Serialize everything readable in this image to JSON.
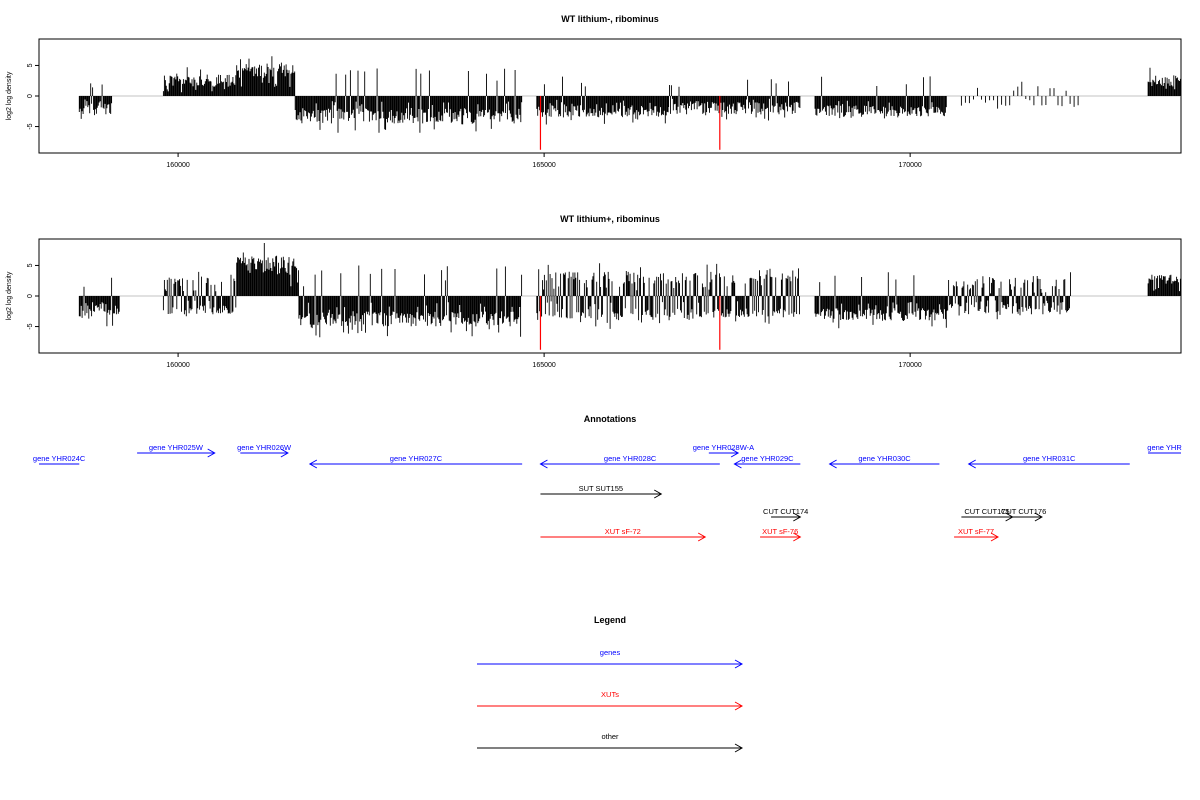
{
  "colors": {
    "gene": "#0000ff",
    "xut": "#ff0000",
    "other": "#000000",
    "marker": "#ff0000",
    "bars": "#000000"
  },
  "chart_data": [
    {
      "type": "bar",
      "title": "WT lithium-, ribominus",
      "ylabel": "log2 log density",
      "xlim": [
        158100,
        173700
      ],
      "ylim": [
        -9,
        9
      ],
      "x_ticks": [
        "160000",
        "165000",
        "170000"
      ],
      "y_ticks": [
        "-5",
        "0",
        "5"
      ],
      "red_markers_x": [
        164950,
        167400
      ],
      "segments": [
        {
          "x": [
            158650,
            159100
          ],
          "mode": "neg",
          "range": [
            0.5,
            3.0
          ]
        },
        {
          "x": [
            159800,
            160800
          ],
          "mode": "pos",
          "range": [
            1.5,
            3.5
          ]
        },
        {
          "x": [
            160800,
            161600
          ],
          "mode": "pos",
          "range": [
            3.0,
            5.5
          ]
        },
        {
          "x": [
            161600,
            164700
          ],
          "mode": "neg",
          "range": [
            2.0,
            4.5
          ]
        },
        {
          "x": [
            164900,
            166700
          ],
          "mode": "neg",
          "range": [
            1.5,
            3.5
          ]
        },
        {
          "x": [
            166700,
            168500
          ],
          "mode": "neg",
          "range": [
            1.0,
            3.0
          ]
        },
        {
          "x": [
            168700,
            170500
          ],
          "mode": "neg",
          "range": [
            1.5,
            3.5
          ]
        },
        {
          "x": [
            170700,
            172300
          ],
          "mode": "sparse",
          "range": [
            0.5,
            1.8
          ]
        },
        {
          "x": [
            173250,
            173700
          ],
          "mode": "pos",
          "range": [
            1.5,
            3.5
          ]
        }
      ]
    },
    {
      "type": "bar",
      "title": "WT lithium+, ribominus",
      "ylabel": "log2 log density",
      "xlim": [
        158100,
        173700
      ],
      "ylim": [
        -9,
        9
      ],
      "x_ticks": [
        "160000",
        "165000",
        "170000"
      ],
      "y_ticks": [
        "-5",
        "0",
        "5"
      ],
      "red_markers_x": [
        164950,
        167400
      ],
      "segments": [
        {
          "x": [
            158650,
            159200
          ],
          "mode": "neg",
          "range": [
            1.0,
            4.0
          ]
        },
        {
          "x": [
            159800,
            160800
          ],
          "mode": "mixed",
          "range": [
            1.5,
            3.0
          ]
        },
        {
          "x": [
            160800,
            161650
          ],
          "mode": "pos",
          "range": [
            3.5,
            6.5
          ]
        },
        {
          "x": [
            161650,
            164700
          ],
          "mode": "neg",
          "range": [
            2.5,
            5.0
          ]
        },
        {
          "x": [
            164900,
            167500
          ],
          "mode": "mixed",
          "range": [
            2.0,
            4.0
          ]
        },
        {
          "x": [
            167500,
            168500
          ],
          "mode": "mixed",
          "range": [
            2.0,
            3.5
          ]
        },
        {
          "x": [
            168700,
            170500
          ],
          "mode": "neg",
          "range": [
            2.0,
            4.0
          ]
        },
        {
          "x": [
            170500,
            172200
          ],
          "mode": "mixed",
          "range": [
            1.0,
            3.0
          ]
        },
        {
          "x": [
            173250,
            173700
          ],
          "mode": "pos",
          "range": [
            2.0,
            3.5
          ]
        }
      ]
    }
  ],
  "annotations": {
    "title": "Annotations",
    "genes": [
      {
        "label": "gene YHR024C",
        "from": 158650,
        "to": 158100
      },
      {
        "label": "gene YHR025W",
        "from": 159440,
        "to": 160500
      },
      {
        "label": "gene YHR026W",
        "from": 160850,
        "to": 161500
      },
      {
        "label": "gene YHR027C",
        "from": 164700,
        "to": 161800
      },
      {
        "label": "gene YHR028C",
        "from": 167400,
        "to": 164950
      },
      {
        "label": "gene YHR028W-A",
        "from": 167250,
        "to": 167650
      },
      {
        "label": "gene YHR029C",
        "from": 168500,
        "to": 167600
      },
      {
        "label": "gene YHR030C",
        "from": 170400,
        "to": 168900
      },
      {
        "label": "gene YHR031C",
        "from": 173000,
        "to": 170800
      },
      {
        "label": "gene YHR",
        "from": 173250,
        "to": 173700
      }
    ],
    "others": [
      {
        "label": "SUT SUT155",
        "from": 164950,
        "to": 166600
      },
      {
        "label": "CUT CUT174",
        "from": 168100,
        "to": 168500
      },
      {
        "label": "CUT CUT175",
        "from": 170700,
        "to": 171400
      },
      {
        "label": "CUT CUT176",
        "from": 171300,
        "to": 171800
      }
    ],
    "xuts": [
      {
        "label": "XUT sF-72",
        "from": 164950,
        "to": 167200
      },
      {
        "label": "XUT sF-76",
        "from": 167950,
        "to": 168500
      },
      {
        "label": "XUT sF-77",
        "from": 170600,
        "to": 171200
      }
    ]
  },
  "legend": {
    "title": "Legend",
    "items": [
      {
        "label": "genes",
        "color": "#0000ff"
      },
      {
        "label": "XUTs",
        "color": "#ff0000"
      },
      {
        "label": "other",
        "color": "#000000"
      }
    ]
  }
}
